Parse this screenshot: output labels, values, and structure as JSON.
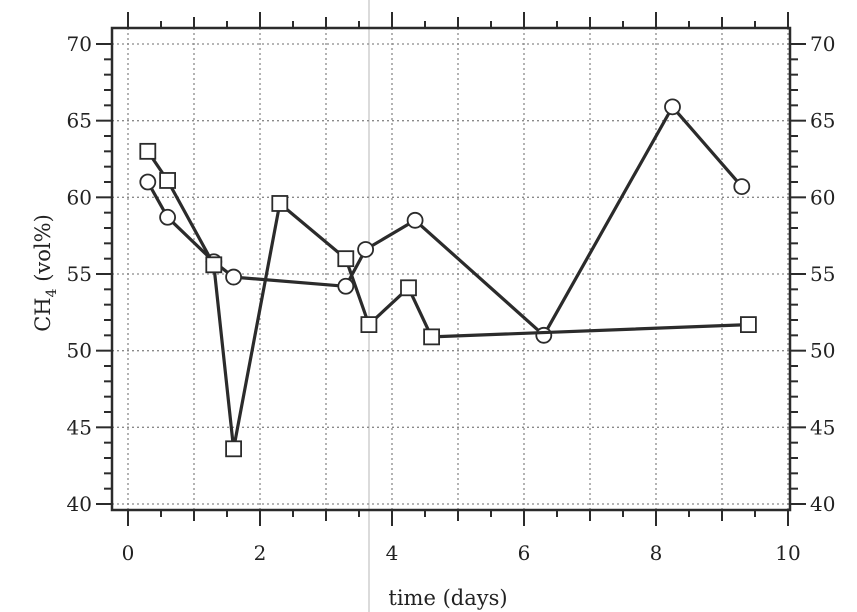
{
  "chart_data": {
    "type": "line",
    "title": "",
    "xlabel": "time (days)",
    "ylabel": {
      "main": "CH",
      "sub": "4",
      "rest": " (vol%)"
    },
    "xlim": [
      0,
      10
    ],
    "ylim": [
      40,
      70
    ],
    "x_ticks": [
      0,
      2,
      4,
      6,
      8,
      10
    ],
    "y_ticks": [
      40,
      45,
      50,
      55,
      60,
      65,
      70
    ],
    "grid": true,
    "right_axis_mirror": true,
    "legend": "none",
    "series": [
      {
        "marker": "circle",
        "x": [
          0.3,
          0.6,
          1.3,
          1.6,
          3.3,
          3.6,
          4.35,
          6.3,
          8.25,
          9.3
        ],
        "y": [
          61.0,
          58.7,
          55.8,
          54.8,
          54.2,
          56.6,
          58.5,
          51.0,
          65.9,
          60.7
        ]
      },
      {
        "marker": "square",
        "x": [
          0.3,
          0.6,
          1.3,
          1.6,
          2.3,
          3.3,
          3.65,
          4.25,
          4.6,
          9.4
        ],
        "y": [
          63.0,
          61.1,
          55.6,
          43.6,
          59.6,
          56.0,
          51.7,
          54.1,
          50.9,
          51.7
        ]
      }
    ],
    "colors": {
      "line": "#2b2b2b",
      "marker_fill": "#ffffff",
      "grid": "#8a8a8a"
    }
  }
}
